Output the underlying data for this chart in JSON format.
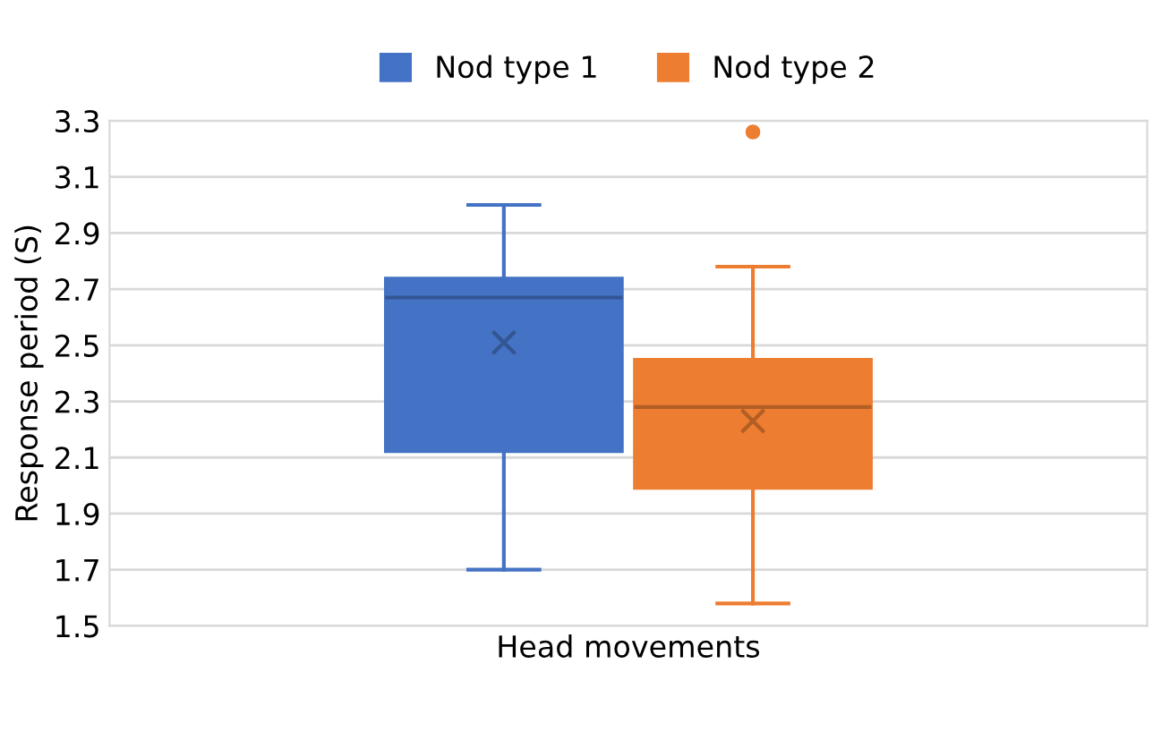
{
  "chart_data": {
    "type": "box",
    "ylabel": "Response period (S)",
    "categories": [
      "Head movements"
    ],
    "series": [
      {
        "name": "Nod type 1",
        "color": "#4472c4",
        "boxes": [
          {
            "low": 1.7,
            "q1": 2.12,
            "median": 2.67,
            "q3": 2.74,
            "high": 3.0,
            "mean": 2.51
          }
        ]
      },
      {
        "name": "Nod type 2",
        "color": "#ed7d31",
        "boxes": [
          {
            "low": 1.58,
            "q1": 1.99,
            "median": 2.28,
            "q3": 2.45,
            "high": 2.78,
            "mean": 2.23,
            "outliers": [
              3.26
            ]
          }
        ]
      }
    ],
    "ylim": [
      1.5,
      3.3
    ],
    "yticks": [
      1.5,
      1.7,
      1.9,
      2.1,
      2.3,
      2.5,
      2.7,
      2.9,
      3.1,
      3.3
    ],
    "grid": "y",
    "legend": "top"
  }
}
